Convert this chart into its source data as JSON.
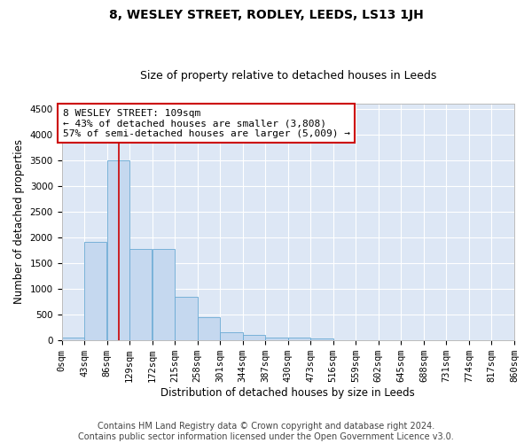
{
  "title": "8, WESLEY STREET, RODLEY, LEEDS, LS13 1JH",
  "subtitle": "Size of property relative to detached houses in Leeds",
  "xlabel": "Distribution of detached houses by size in Leeds",
  "ylabel": "Number of detached properties",
  "bin_edges": [
    0,
    43,
    86,
    129,
    172,
    215,
    258,
    301,
    344,
    387,
    430,
    473,
    516,
    559,
    602,
    645,
    688,
    731,
    774,
    817,
    860
  ],
  "bar_heights": [
    50,
    1920,
    3500,
    1770,
    1770,
    850,
    450,
    160,
    100,
    60,
    55,
    40,
    10,
    5,
    3,
    2,
    1,
    1,
    0,
    0
  ],
  "bar_color": "#c5d8ef",
  "bar_edge_color": "#6aaad4",
  "red_line_x": 109,
  "annotation_text": "8 WESLEY STREET: 109sqm\n← 43% of detached houses are smaller (3,808)\n57% of semi-detached houses are larger (5,009) →",
  "annotation_box_color": "#ffffff",
  "annotation_border_color": "#cc0000",
  "ylim": [
    0,
    4600
  ],
  "yticks": [
    0,
    500,
    1000,
    1500,
    2000,
    2500,
    3000,
    3500,
    4000,
    4500
  ],
  "background_color": "#dde7f5",
  "grid_color": "#ffffff",
  "fig_background": "#ffffff",
  "footer_line1": "Contains HM Land Registry data © Crown copyright and database right 2024.",
  "footer_line2": "Contains public sector information licensed under the Open Government Licence v3.0.",
  "title_fontsize": 10,
  "subtitle_fontsize": 9,
  "axis_label_fontsize": 8.5,
  "tick_fontsize": 7.5,
  "annotation_fontsize": 8,
  "footer_fontsize": 7
}
